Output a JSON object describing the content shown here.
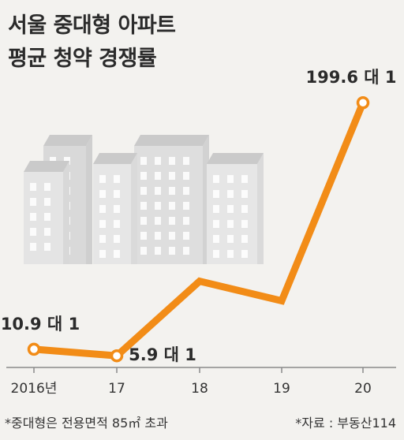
{
  "title_line1": "서울 중대형 아파트",
  "title_line2": "평균 청약 경쟁률",
  "footnote_left": "*중대형은 전용면적 85㎡ 초과",
  "footnote_right": "*자료 : 부동산114",
  "colors": {
    "line": "#f28c17",
    "marker_fill": "#ffffff",
    "axis": "#8a8a8a",
    "text": "#2b2b2b"
  },
  "chart_data": {
    "type": "line",
    "categories": [
      "2016년",
      "17",
      "18",
      "19",
      "20"
    ],
    "values": [
      10.9,
      5.9,
      63,
      48,
      199.6
    ],
    "ylim": [
      0,
      210
    ],
    "grid": false,
    "data_labels": [
      {
        "index": 0,
        "text": "10.9 대 1"
      },
      {
        "index": 1,
        "text": "5.9 대 1"
      },
      {
        "index": 4,
        "text": "199.6 대 1"
      }
    ]
  }
}
